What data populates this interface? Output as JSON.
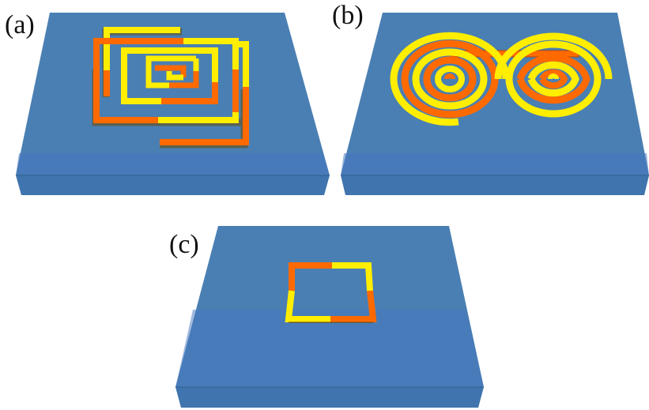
{
  "panels": {
    "a": {
      "label": "(a)",
      "structure": "square-spiral"
    },
    "b": {
      "label": "(b)",
      "structure": "double-spiral"
    },
    "c": {
      "label": "(c)",
      "structure": "square-loop"
    }
  },
  "colors": {
    "substrate_top": "#4a7fb3",
    "substrate_band": "#4577bf",
    "substrate_front": "#3f74ae",
    "substrate_front_dark": "#37679d",
    "conductor_orange": "#ff6a00",
    "conductor_orange_dark": "#b94a00",
    "conductor_yellow": "#ffee00",
    "conductor_yellow_dark": "#b8ad00"
  }
}
